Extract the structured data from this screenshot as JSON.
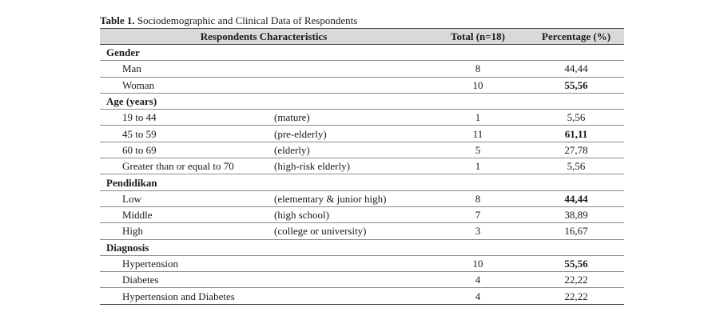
{
  "caption": {
    "label": "Table 1.",
    "text": " Sociodemographic and Clinical Data of Respondents"
  },
  "headers": {
    "characteristics": "Respondents Characteristics",
    "total": "Total (n=18)",
    "percentage": "Percentage (%)"
  },
  "sections": [
    {
      "title": "Gender",
      "rows": [
        {
          "label": "Man",
          "note": "",
          "total": "8",
          "pct": "44,44",
          "bold": false
        },
        {
          "label": "Woman",
          "note": "",
          "total": "10",
          "pct": "55,56",
          "bold": true
        }
      ]
    },
    {
      "title": "Age (years)",
      "rows": [
        {
          "label": "19 to 44",
          "note": "(mature)",
          "total": "1",
          "pct": "5,56",
          "bold": false
        },
        {
          "label": "45 to 59",
          "note": "(pre-elderly)",
          "total": "11",
          "pct": "61,11",
          "bold": true
        },
        {
          "label": "60 to 69",
          "note": "(elderly)",
          "total": "5",
          "pct": "27,78",
          "bold": false
        },
        {
          "label": "Greater than or equal to 70",
          "note": "(high-risk elderly)",
          "total": "1",
          "pct": "5,56",
          "bold": false
        }
      ]
    },
    {
      "title": "Pendidikan",
      "rows": [
        {
          "label": "Low",
          "note": "(elementary & junior high)",
          "total": "8",
          "pct": "44,44",
          "bold": true
        },
        {
          "label": "Middle",
          "note": "(high school)",
          "total": "7",
          "pct": "38,89",
          "bold": false
        },
        {
          "label": "High",
          "note": "(college or university)",
          "total": "3",
          "pct": "16,67",
          "bold": false
        }
      ]
    },
    {
      "title": "Diagnosis",
      "rows": [
        {
          "label": "Hypertension",
          "note": "",
          "total": "10",
          "pct": "55,56",
          "bold": true
        },
        {
          "label": "Diabetes",
          "note": "",
          "total": "4",
          "pct": "22,22",
          "bold": false
        },
        {
          "label": "Hypertension and Diabetes",
          "note": "",
          "total": "4",
          "pct": "22,22",
          "bold": false
        }
      ]
    }
  ]
}
